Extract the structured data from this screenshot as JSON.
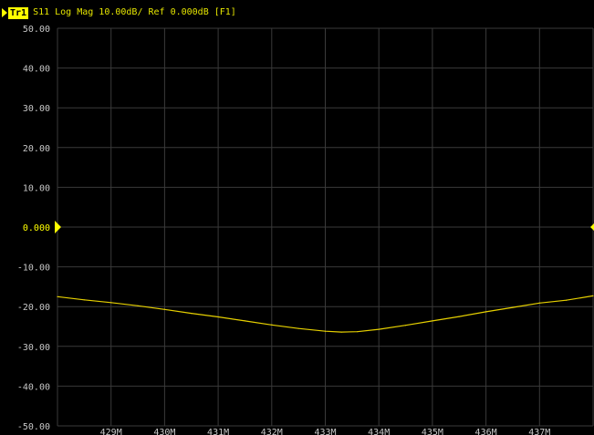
{
  "trace": {
    "id": "Tr1",
    "description": "S11 Log Mag 10.00dB/ Ref 0.000dB [F1]"
  },
  "colors": {
    "background": "#000000",
    "grid": "#3a3a3a",
    "trace": "#e6d000",
    "label": "#c8c8c8",
    "ref_marker": "#ffff00"
  },
  "chart_data": {
    "type": "line",
    "title": "",
    "xlabel": "",
    "ylabel": "",
    "xlim": [
      428.0,
      438.0
    ],
    "ylim": [
      -50,
      50
    ],
    "x_unit": "MHz",
    "y_unit": "dB",
    "reference_level": 0,
    "grid": true,
    "y_ticks": [
      50,
      40,
      30,
      20,
      10,
      0,
      -10,
      -20,
      -30,
      -40,
      -50
    ],
    "y_tick_labels": [
      "50.00",
      "40.00",
      "30.00",
      "20.00",
      "10.00",
      "0.000",
      "-10.00",
      "-20.00",
      "-30.00",
      "-40.00",
      "-50.00"
    ],
    "x_ticks": [
      429,
      430,
      431,
      432,
      433,
      434,
      435,
      436,
      437
    ],
    "x_tick_labels": [
      "429M",
      "430M",
      "431M",
      "432M",
      "433M",
      "434M",
      "435M",
      "436M",
      "437M"
    ],
    "series": [
      {
        "x": [
          428.0,
          428.5,
          429.0,
          429.5,
          430.0,
          430.5,
          431.0,
          431.5,
          432.0,
          432.5,
          433.0,
          433.3,
          433.6,
          434.0,
          434.5,
          435.0,
          435.5,
          436.0,
          436.5,
          437.0,
          437.5,
          438.0
        ],
        "y": [
          -17.5,
          -18.3,
          -19.0,
          -19.8,
          -20.7,
          -21.7,
          -22.6,
          -23.6,
          -24.6,
          -25.5,
          -26.2,
          -26.4,
          -26.3,
          -25.7,
          -24.7,
          -23.6,
          -22.5,
          -21.3,
          -20.2,
          -19.1,
          -18.4,
          -17.3
        ]
      }
    ]
  }
}
